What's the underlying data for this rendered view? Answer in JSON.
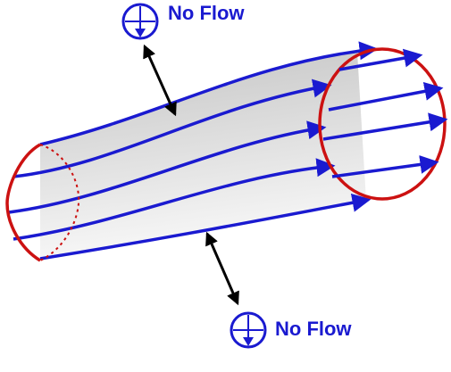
{
  "labels": {
    "top": "No Flow",
    "bottom": "No Flow"
  },
  "colors": {
    "streamline": "#1a1ad0",
    "boundary": "#cc1111",
    "arrow": "#000000",
    "label": "#1a1ad0",
    "tube_fill_dark": "#c4c4c4",
    "tube_fill_light": "#f6f6f6"
  },
  "icons": {
    "top_symbol": "circle-crosshair-arrow-down-icon",
    "bottom_symbol": "circle-crosshair-arrow-down-icon"
  }
}
